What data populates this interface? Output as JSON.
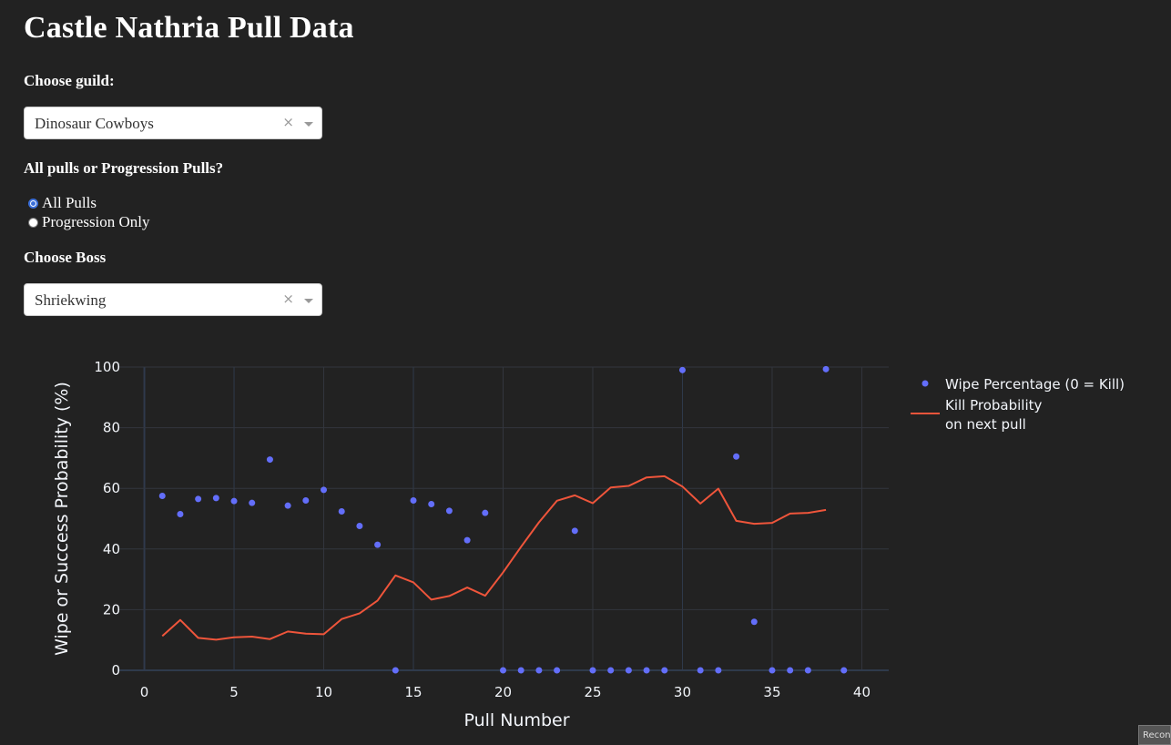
{
  "page": {
    "title": "Castle Nathria Pull Data"
  },
  "controls": {
    "guild_label": "Choose guild:",
    "guild_value": "Dinosaur Cowboys",
    "pull_type_label": "All pulls or Progression Pulls?",
    "pull_type_options": [
      "All Pulls",
      "Progression Only"
    ],
    "pull_type_selected": "All Pulls",
    "boss_label": "Choose Boss",
    "boss_value": "Shriekwing",
    "clear_icon": "×",
    "dropdown_icon": "chevron-down-icon"
  },
  "corner_button": {
    "label": "Recon"
  },
  "chart_data": {
    "type": "scatter+line",
    "xlabel": "Pull Number",
    "ylabel": "Wipe or Success Probability (%)",
    "xlim": [
      -1.5,
      41.5
    ],
    "ylim": [
      0,
      100
    ],
    "x_ticks": [
      0,
      5,
      10,
      15,
      20,
      25,
      30,
      35,
      40
    ],
    "y_ticks": [
      0,
      20,
      40,
      60,
      80,
      100
    ],
    "grid": true,
    "legend_position": "top-right",
    "colors": {
      "background": "#222222",
      "grid": "#33363e",
      "zeroline": "#2f3a4c",
      "scatter": "#636efa",
      "line": "#ef553b"
    },
    "series": [
      {
        "name": "Wipe Percentage (0 = Kill)",
        "kind": "markers",
        "x": [
          1,
          2,
          3,
          4,
          5,
          6,
          7,
          8,
          9,
          10,
          11,
          12,
          13,
          14,
          15,
          16,
          17,
          18,
          19,
          20,
          21,
          22,
          23,
          24,
          25,
          26,
          27,
          28,
          29,
          30,
          31,
          32,
          33,
          34,
          35,
          36,
          37,
          38,
          39
        ],
        "y": [
          57.5,
          51.5,
          56.5,
          56.8,
          55.8,
          55.2,
          69.5,
          54.3,
          56,
          59.5,
          52.4,
          47.6,
          41.4,
          0,
          56,
          54.8,
          52.6,
          42.9,
          51.9,
          0,
          0,
          0,
          0,
          46,
          0,
          0,
          0,
          0,
          0,
          99,
          0,
          0,
          70.5,
          16,
          0,
          0,
          0,
          99.3,
          0
        ]
      },
      {
        "name": "Kill Probability on next pull",
        "name_lines": [
          "Kill Probability",
          "on next pull"
        ],
        "kind": "line",
        "x": [
          1,
          2,
          3,
          4,
          5,
          6,
          7,
          8,
          9,
          10,
          11,
          12,
          13,
          14,
          15,
          16,
          17,
          18,
          19,
          20,
          21,
          22,
          23,
          24,
          25,
          26,
          27,
          28,
          29,
          30,
          31,
          32,
          33,
          34,
          35,
          36,
          37,
          38
        ],
        "y": [
          11.3,
          16.6,
          10.7,
          10.1,
          10.9,
          11.1,
          10.3,
          12.8,
          12.1,
          11.9,
          16.9,
          18.8,
          23,
          31.3,
          29,
          23.3,
          24.5,
          27.3,
          24.6,
          32.3,
          40.7,
          48.8,
          55.9,
          57.7,
          55.1,
          60.3,
          60.8,
          63.6,
          64,
          60.6,
          55,
          59.9,
          49.3,
          48.3,
          48.6,
          51.7,
          51.9,
          52.9
        ]
      }
    ]
  }
}
